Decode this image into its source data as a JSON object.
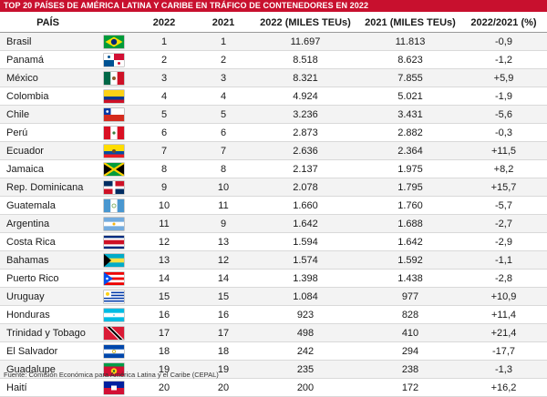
{
  "title": "TOP 20 PAÍSES DE AMÉRICA LATINA Y CARIBE EN TRÁFICO DE CONTENEDORES EN 2022",
  "headers": {
    "country": "PAÍS",
    "flag": "",
    "rank_2022": "2022",
    "rank_2021": "2021",
    "teu_2022": "2022 (MILES TEUs)",
    "teu_2021": "2021 (MILES TEUs)",
    "change": "2022/2021 (%)"
  },
  "rows": [
    {
      "country": "Brasil",
      "flag": "brazil-flag",
      "rank_2022": "1",
      "rank_2021": "1",
      "teu_2022": "11.697",
      "teu_2021": "11.813",
      "change": "-0,9"
    },
    {
      "country": "Panamá",
      "flag": "panama-flag",
      "rank_2022": "2",
      "rank_2021": "2",
      "teu_2022": "8.518",
      "teu_2021": "8.623",
      "change": "-1,2"
    },
    {
      "country": "México",
      "flag": "mexico-flag",
      "rank_2022": "3",
      "rank_2021": "3",
      "teu_2022": "8.321",
      "teu_2021": "7.855",
      "change": "+5,9"
    },
    {
      "country": "Colombia",
      "flag": "colombia-flag",
      "rank_2022": "4",
      "rank_2021": "4",
      "teu_2022": "4.924",
      "teu_2021": "5.021",
      "change": "-1,9"
    },
    {
      "country": "Chile",
      "flag": "chile-flag",
      "rank_2022": "5",
      "rank_2021": "5",
      "teu_2022": "3.236",
      "teu_2021": "3.431",
      "change": "-5,6"
    },
    {
      "country": "Perú",
      "flag": "peru-flag",
      "rank_2022": "6",
      "rank_2021": "6",
      "teu_2022": "2.873",
      "teu_2021": "2.882",
      "change": "-0,3"
    },
    {
      "country": "Ecuador",
      "flag": "ecuador-flag",
      "rank_2022": "7",
      "rank_2021": "7",
      "teu_2022": "2.636",
      "teu_2021": "2.364",
      "change": "+11,5"
    },
    {
      "country": "Jamaica",
      "flag": "jamaica-flag",
      "rank_2022": "8",
      "rank_2021": "8",
      "teu_2022": "2.137",
      "teu_2021": "1.975",
      "change": "+8,2"
    },
    {
      "country": "Rep. Dominicana",
      "flag": "dominican-republic-flag",
      "rank_2022": "9",
      "rank_2021": "10",
      "teu_2022": "2.078",
      "teu_2021": "1.795",
      "change": "+15,7"
    },
    {
      "country": "Guatemala",
      "flag": "guatemala-flag",
      "rank_2022": "10",
      "rank_2021": "11",
      "teu_2022": "1.660",
      "teu_2021": "1.760",
      "change": "-5,7"
    },
    {
      "country": "Argentina",
      "flag": "argentina-flag",
      "rank_2022": "11",
      "rank_2021": "9",
      "teu_2022": "1.642",
      "teu_2021": "1.688",
      "change": "-2,7"
    },
    {
      "country": "Costa Rica",
      "flag": "costa-rica-flag",
      "rank_2022": "12",
      "rank_2021": "13",
      "teu_2022": "1.594",
      "teu_2021": "1.642",
      "change": "-2,9"
    },
    {
      "country": "Bahamas",
      "flag": "bahamas-flag",
      "rank_2022": "13",
      "rank_2021": "12",
      "teu_2022": "1.574",
      "teu_2021": "1.592",
      "change": "-1,1"
    },
    {
      "country": "Puerto Rico",
      "flag": "puerto-rico-flag",
      "rank_2022": "14",
      "rank_2021": "14",
      "teu_2022": "1.398",
      "teu_2021": "1.438",
      "change": "-2,8"
    },
    {
      "country": "Uruguay",
      "flag": "uruguay-flag",
      "rank_2022": "15",
      "rank_2021": "15",
      "teu_2022": "1.084",
      "teu_2021": "977",
      "change": "+10,9"
    },
    {
      "country": "Honduras",
      "flag": "honduras-flag",
      "rank_2022": "16",
      "rank_2021": "16",
      "teu_2022": "923",
      "teu_2021": "828",
      "change": "+11,4"
    },
    {
      "country": "Trinidad y Tobago",
      "flag": "trinidad-and-tobago-flag",
      "rank_2022": "17",
      "rank_2021": "17",
      "teu_2022": "498",
      "teu_2021": "410",
      "change": "+21,4"
    },
    {
      "country": "El Salvador",
      "flag": "el-salvador-flag",
      "rank_2022": "18",
      "rank_2021": "18",
      "teu_2022": "242",
      "teu_2021": "294",
      "change": "-17,7"
    },
    {
      "country": "Guadalupe",
      "flag": "guadeloupe-flag",
      "rank_2022": "19",
      "rank_2021": "19",
      "teu_2022": "235",
      "teu_2021": "238",
      "change": "-1,3"
    },
    {
      "country": "Haití",
      "flag": "haiti-flag",
      "rank_2022": "20",
      "rank_2021": "20",
      "teu_2022": "200",
      "teu_2021": "172",
      "change": "+16,2"
    }
  ],
  "source": "Fuente: Comisión Económica para América Latina y el Caribe (CEPAL)",
  "colors": {
    "title_background": "#c8102e",
    "title_text": "#ffffff",
    "stripe": "#f3f3f3"
  }
}
